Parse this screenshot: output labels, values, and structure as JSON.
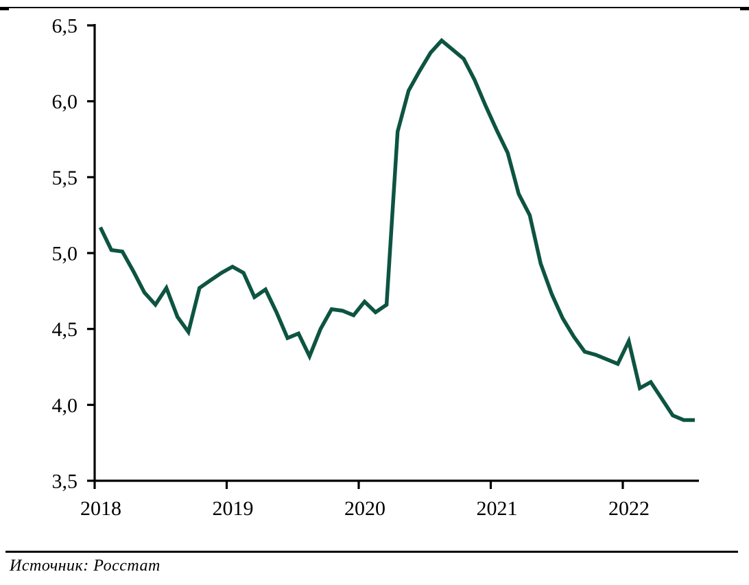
{
  "caption": {
    "text": "Источник: Росстат"
  },
  "chart_data": {
    "type": "line",
    "title": "",
    "xlabel": "",
    "ylabel": "",
    "ylim": [
      3.5,
      6.5
    ],
    "grid": false,
    "legend": "none",
    "decimal_separator": ",",
    "line_color": "#0d5441",
    "axis_color": "#000000",
    "yticks": [
      {
        "value": 6.5,
        "label": "6,5"
      },
      {
        "value": 6.0,
        "label": "6,0"
      },
      {
        "value": 5.5,
        "label": "5,5"
      },
      {
        "value": 5.0,
        "label": "5,0"
      },
      {
        "value": 4.5,
        "label": "4,5"
      },
      {
        "value": 4.0,
        "label": "4,0"
      },
      {
        "value": 3.5,
        "label": "3,5"
      }
    ],
    "xticks": [
      {
        "label": "2018"
      },
      {
        "label": "2019"
      },
      {
        "label": "2020"
      },
      {
        "label": "2021"
      },
      {
        "label": "2022"
      }
    ],
    "x_frequency": "monthly",
    "x_start": "2018-01",
    "x_end": "2022-07",
    "series": [
      {
        "name": "series-1",
        "values": [
          5.17,
          5.02,
          5.01,
          4.88,
          4.74,
          4.66,
          4.77,
          4.58,
          4.48,
          4.77,
          4.82,
          4.87,
          4.91,
          4.87,
          4.71,
          4.76,
          4.61,
          4.44,
          4.47,
          4.32,
          4.5,
          4.63,
          4.62,
          4.59,
          4.68,
          4.61,
          4.66,
          5.8,
          6.07,
          6.2,
          6.32,
          6.4,
          6.34,
          6.28,
          6.14,
          5.97,
          5.81,
          5.66,
          5.39,
          5.25,
          4.93,
          4.73,
          4.57,
          4.45,
          4.35,
          4.33,
          4.3,
          4.27,
          4.42,
          4.11,
          4.15,
          4.04,
          3.93,
          3.9,
          3.9
        ]
      }
    ],
    "source_note": "Источник: Росстат"
  }
}
